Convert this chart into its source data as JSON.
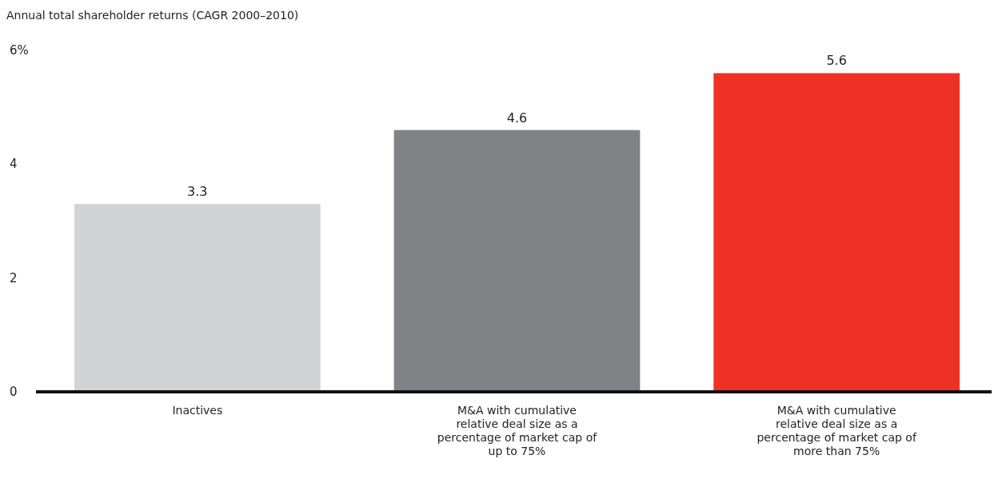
{
  "chart_data": {
    "type": "bar",
    "title": "Annual total shareholder returns (CAGR 2000–2010)",
    "categories": [
      "Inactives",
      "M&A with cumulative relative deal size as a percentage of market cap of up to 75%",
      "M&A with cumulative relative deal size as a percentage of market cap of more than 75%"
    ],
    "values": [
      3.3,
      4.6,
      5.6
    ],
    "colors": [
      "#d1d2d4",
      "#818285",
      "#ee3124"
    ],
    "ylim": [
      0,
      6
    ],
    "yticks": [
      0,
      2,
      4,
      {
        "value": 6,
        "label": "6%"
      }
    ],
    "data_labels": true,
    "grid": false
  }
}
